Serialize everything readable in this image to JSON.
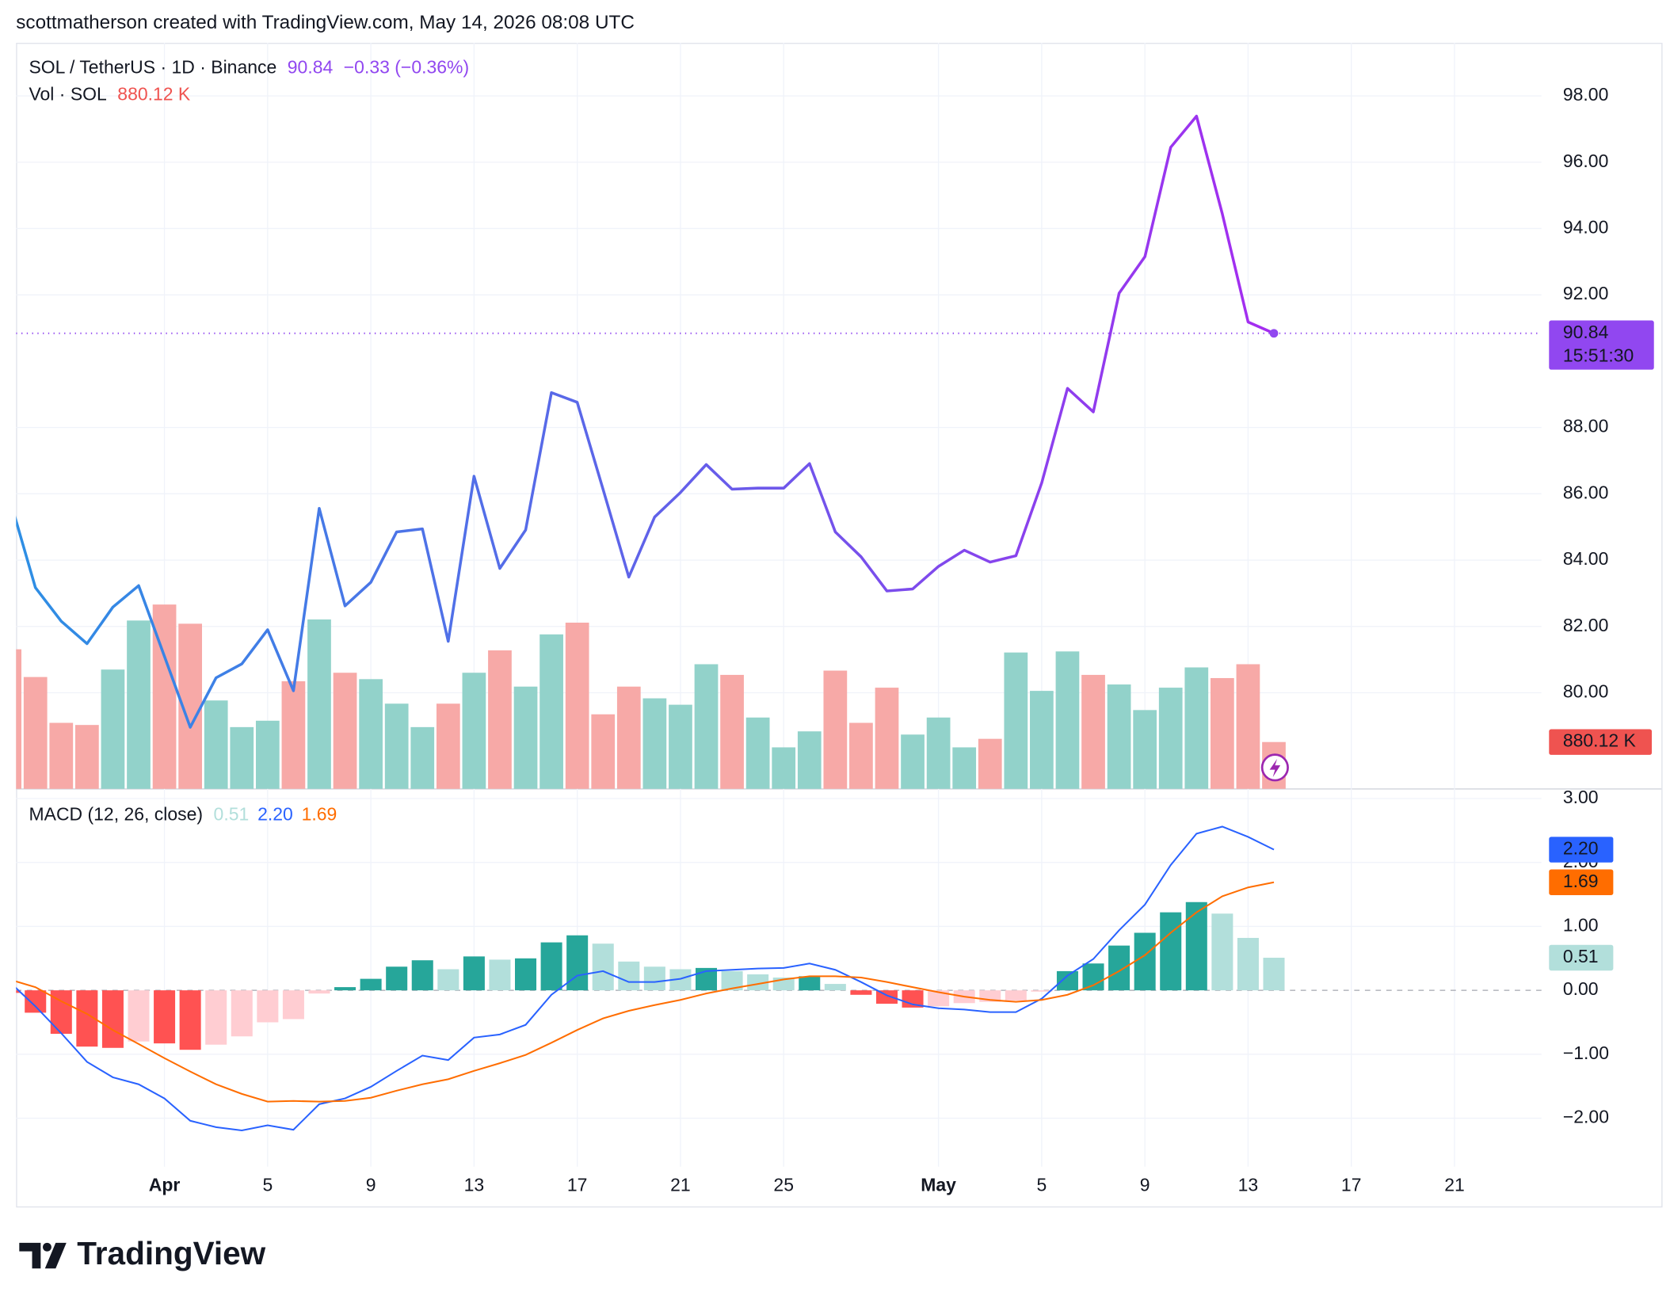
{
  "header": "scottmatherson created with TradingView.com, May 14, 2026 08:08 UTC",
  "footer": "TradingView",
  "chart_data": [
    {
      "type": "line",
      "x": [
        "2026-03-26",
        "2026-03-27",
        "2026-03-28",
        "2026-03-29",
        "2026-03-30",
        "2026-03-31",
        "2026-04-01",
        "2026-04-02",
        "2026-04-03",
        "2026-04-04",
        "2026-04-05",
        "2026-04-06",
        "2026-04-07",
        "2026-04-08",
        "2026-04-09",
        "2026-04-10",
        "2026-04-11",
        "2026-04-12",
        "2026-04-13",
        "2026-04-14",
        "2026-04-15",
        "2026-04-16",
        "2026-04-17",
        "2026-04-18",
        "2026-04-19",
        "2026-04-20",
        "2026-04-21",
        "2026-04-22",
        "2026-04-23",
        "2026-04-24",
        "2026-04-25",
        "2026-04-26",
        "2026-04-27",
        "2026-04-28",
        "2026-04-29",
        "2026-04-30",
        "2026-05-01",
        "2026-05-02",
        "2026-05-03",
        "2026-05-04",
        "2026-05-05",
        "2026-05-06",
        "2026-05-07",
        "2026-05-08",
        "2026-05-09",
        "2026-05-10",
        "2026-05-11",
        "2026-05-12",
        "2026-05-13",
        "2026-05-14"
      ],
      "xlim": [
        "2026-03-26",
        "2026-05-24"
      ],
      "ylim": [
        77.1,
        99.6
      ],
      "yticks": [
        {
          "value": 98,
          "label": "98.00"
        },
        {
          "value": 96,
          "label": "96.00"
        },
        {
          "value": 94,
          "label": "94.00"
        },
        {
          "value": 92,
          "label": "92.00"
        },
        {
          "value": 88,
          "label": "88.00"
        },
        {
          "value": 86,
          "label": "86.00"
        },
        {
          "value": 84,
          "label": "84.00"
        },
        {
          "value": 82,
          "label": "82.00"
        },
        {
          "value": 80,
          "label": "80.00"
        }
      ],
      "y2lim": [
        0,
        14000
      ],
      "grid": true,
      "series": [
        {
          "name": "SOL / TetherUS · 1D · Binance",
          "colors": [
            "#2d8fe4",
            "#5f63e9",
            "#a52cf0"
          ],
          "color": "#9147f0",
          "change_label": "−0.33 (−0.36%)",
          "last_label": "90.84",
          "countdown": "15:51:30",
          "values": [
            85.85,
            83.17,
            82.16,
            81.48,
            82.58,
            83.23,
            81.1,
            78.96,
            80.45,
            80.87,
            81.9,
            80.06,
            85.56,
            82.62,
            83.33,
            84.85,
            84.94,
            81.55,
            86.53,
            83.75,
            84.91,
            89.05,
            88.76,
            86.14,
            83.49,
            85.3,
            86.04,
            86.88,
            86.14,
            86.17,
            86.17,
            86.91,
            84.85,
            84.1,
            83.07,
            83.13,
            83.81,
            84.3,
            83.94,
            84.13,
            86.33,
            89.18,
            88.47,
            92.05,
            93.15,
            96.45,
            97.39,
            94.44,
            91.18,
            90.84
          ]
        },
        {
          "name": "Vol · SOL",
          "axis": "y2",
          "type": "bar",
          "last_label": "880.12 K",
          "colors": {
            "up": "#92d2ca",
            "down": "#f7a9a7",
            "label": "#ef5350"
          },
          "values": [
            2620,
            2100,
            1240,
            1200,
            2240,
            3160,
            3460,
            3100,
            1660,
            1160,
            1280,
            2020,
            3180,
            2180,
            2060,
            1600,
            1160,
            1600,
            2180,
            2600,
            1920,
            2900,
            3120,
            1400,
            1920,
            1700,
            1580,
            2340,
            2140,
            1340,
            780,
            1080,
            2220,
            1240,
            1900,
            1020,
            1340,
            780,
            940,
            2560,
            1840,
            2580,
            2140,
            1960,
            1480,
            1900,
            2280,
            2080,
            2340,
            880.12
          ]
        }
      ]
    },
    {
      "type": "macd",
      "title": "MACD (12, 26, close)",
      "x": [
        "2026-03-26",
        "2026-03-27",
        "2026-03-28",
        "2026-03-29",
        "2026-03-30",
        "2026-03-31",
        "2026-04-01",
        "2026-04-02",
        "2026-04-03",
        "2026-04-04",
        "2026-04-05",
        "2026-04-06",
        "2026-04-07",
        "2026-04-08",
        "2026-04-09",
        "2026-04-10",
        "2026-04-11",
        "2026-04-12",
        "2026-04-13",
        "2026-04-14",
        "2026-04-15",
        "2026-04-16",
        "2026-04-17",
        "2026-04-18",
        "2026-04-19",
        "2026-04-20",
        "2026-04-21",
        "2026-04-22",
        "2026-04-23",
        "2026-04-24",
        "2026-04-25",
        "2026-04-26",
        "2026-04-27",
        "2026-04-28",
        "2026-04-29",
        "2026-04-30",
        "2026-05-01",
        "2026-05-02",
        "2026-05-03",
        "2026-05-04",
        "2026-05-05",
        "2026-05-06",
        "2026-05-07",
        "2026-05-08",
        "2026-05-09",
        "2026-05-10",
        "2026-05-11",
        "2026-05-12",
        "2026-05-13",
        "2026-05-14"
      ],
      "xlim": [
        "2026-03-26",
        "2026-05-24"
      ],
      "xticks": [
        {
          "value": "2026-04-01",
          "label": "Apr"
        },
        {
          "value": "2026-04-05",
          "label": "5"
        },
        {
          "value": "2026-04-09",
          "label": "9"
        },
        {
          "value": "2026-04-13",
          "label": "13"
        },
        {
          "value": "2026-04-17",
          "label": "17"
        },
        {
          "value": "2026-04-21",
          "label": "21"
        },
        {
          "value": "2026-04-25",
          "label": "25"
        },
        {
          "value": "2026-05-01",
          "label": "May"
        },
        {
          "value": "2026-05-05",
          "label": "5"
        },
        {
          "value": "2026-05-09",
          "label": "9"
        },
        {
          "value": "2026-05-13",
          "label": "13"
        },
        {
          "value": "2026-05-17",
          "label": "17"
        },
        {
          "value": "2026-05-21",
          "label": "21"
        }
      ],
      "ylim": [
        -2.76,
        3.15
      ],
      "yticks": [
        {
          "value": 3,
          "label": "3.00"
        },
        {
          "value": 2,
          "label": "2.00"
        },
        {
          "value": 1,
          "label": "1.00"
        },
        {
          "value": 0,
          "label": "0.00"
        },
        {
          "value": -1,
          "label": "−1.00"
        },
        {
          "value": -2,
          "label": "−2.00"
        }
      ],
      "grid": true,
      "series": [
        {
          "type": "bar",
          "last_label": "0.51",
          "color": "#b2dfdb",
          "colors": {
            "up_rising": "#26a69a",
            "up_falling": "#b2dfdb",
            "down_falling": "#ff5252",
            "down_rising": "#ffcdd2"
          },
          "values": [
            -0.04,
            -0.35,
            -0.68,
            -0.88,
            -0.9,
            -0.8,
            -0.83,
            -0.93,
            -0.85,
            -0.72,
            -0.5,
            -0.45,
            -0.05,
            0.05,
            0.18,
            0.37,
            0.47,
            0.33,
            0.53,
            0.48,
            0.5,
            0.75,
            0.86,
            0.73,
            0.45,
            0.37,
            0.33,
            0.35,
            0.3,
            0.25,
            0.2,
            0.22,
            0.1,
            -0.07,
            -0.21,
            -0.27,
            -0.25,
            -0.2,
            -0.18,
            -0.16,
            -0.02,
            0.3,
            0.42,
            0.7,
            0.9,
            1.22,
            1.38,
            1.2,
            0.82,
            0.51
          ]
        },
        {
          "type": "line",
          "last_label": "2.20",
          "color": "#2962ff",
          "values": [
            0.13,
            -0.25,
            -0.67,
            -1.12,
            -1.36,
            -1.47,
            -1.69,
            -2.04,
            -2.14,
            -2.19,
            -2.11,
            -2.18,
            -1.78,
            -1.69,
            -1.51,
            -1.26,
            -1.02,
            -1.09,
            -0.74,
            -0.69,
            -0.54,
            -0.07,
            0.23,
            0.3,
            0.13,
            0.13,
            0.18,
            0.3,
            0.32,
            0.34,
            0.35,
            0.42,
            0.32,
            0.13,
            -0.08,
            -0.22,
            -0.28,
            -0.3,
            -0.34,
            -0.34,
            -0.13,
            0.23,
            0.49,
            0.94,
            1.34,
            1.96,
            2.45,
            2.56,
            2.4,
            2.2
          ]
        },
        {
          "type": "line",
          "last_label": "1.69",
          "color": "#ff6d00",
          "values": [
            0.17,
            0.05,
            -0.17,
            -0.37,
            -0.62,
            -0.84,
            -1.06,
            -1.27,
            -1.47,
            -1.62,
            -1.74,
            -1.73,
            -1.74,
            -1.73,
            -1.68,
            -1.57,
            -1.47,
            -1.39,
            -1.26,
            -1.14,
            -1.01,
            -0.82,
            -0.62,
            -0.44,
            -0.32,
            -0.23,
            -0.15,
            -0.05,
            0.03,
            0.1,
            0.17,
            0.22,
            0.22,
            0.2,
            0.13,
            0.05,
            -0.03,
            -0.1,
            -0.15,
            -0.18,
            -0.15,
            -0.07,
            0.08,
            0.3,
            0.55,
            0.9,
            1.22,
            1.47,
            1.61,
            1.69
          ]
        }
      ]
    }
  ]
}
